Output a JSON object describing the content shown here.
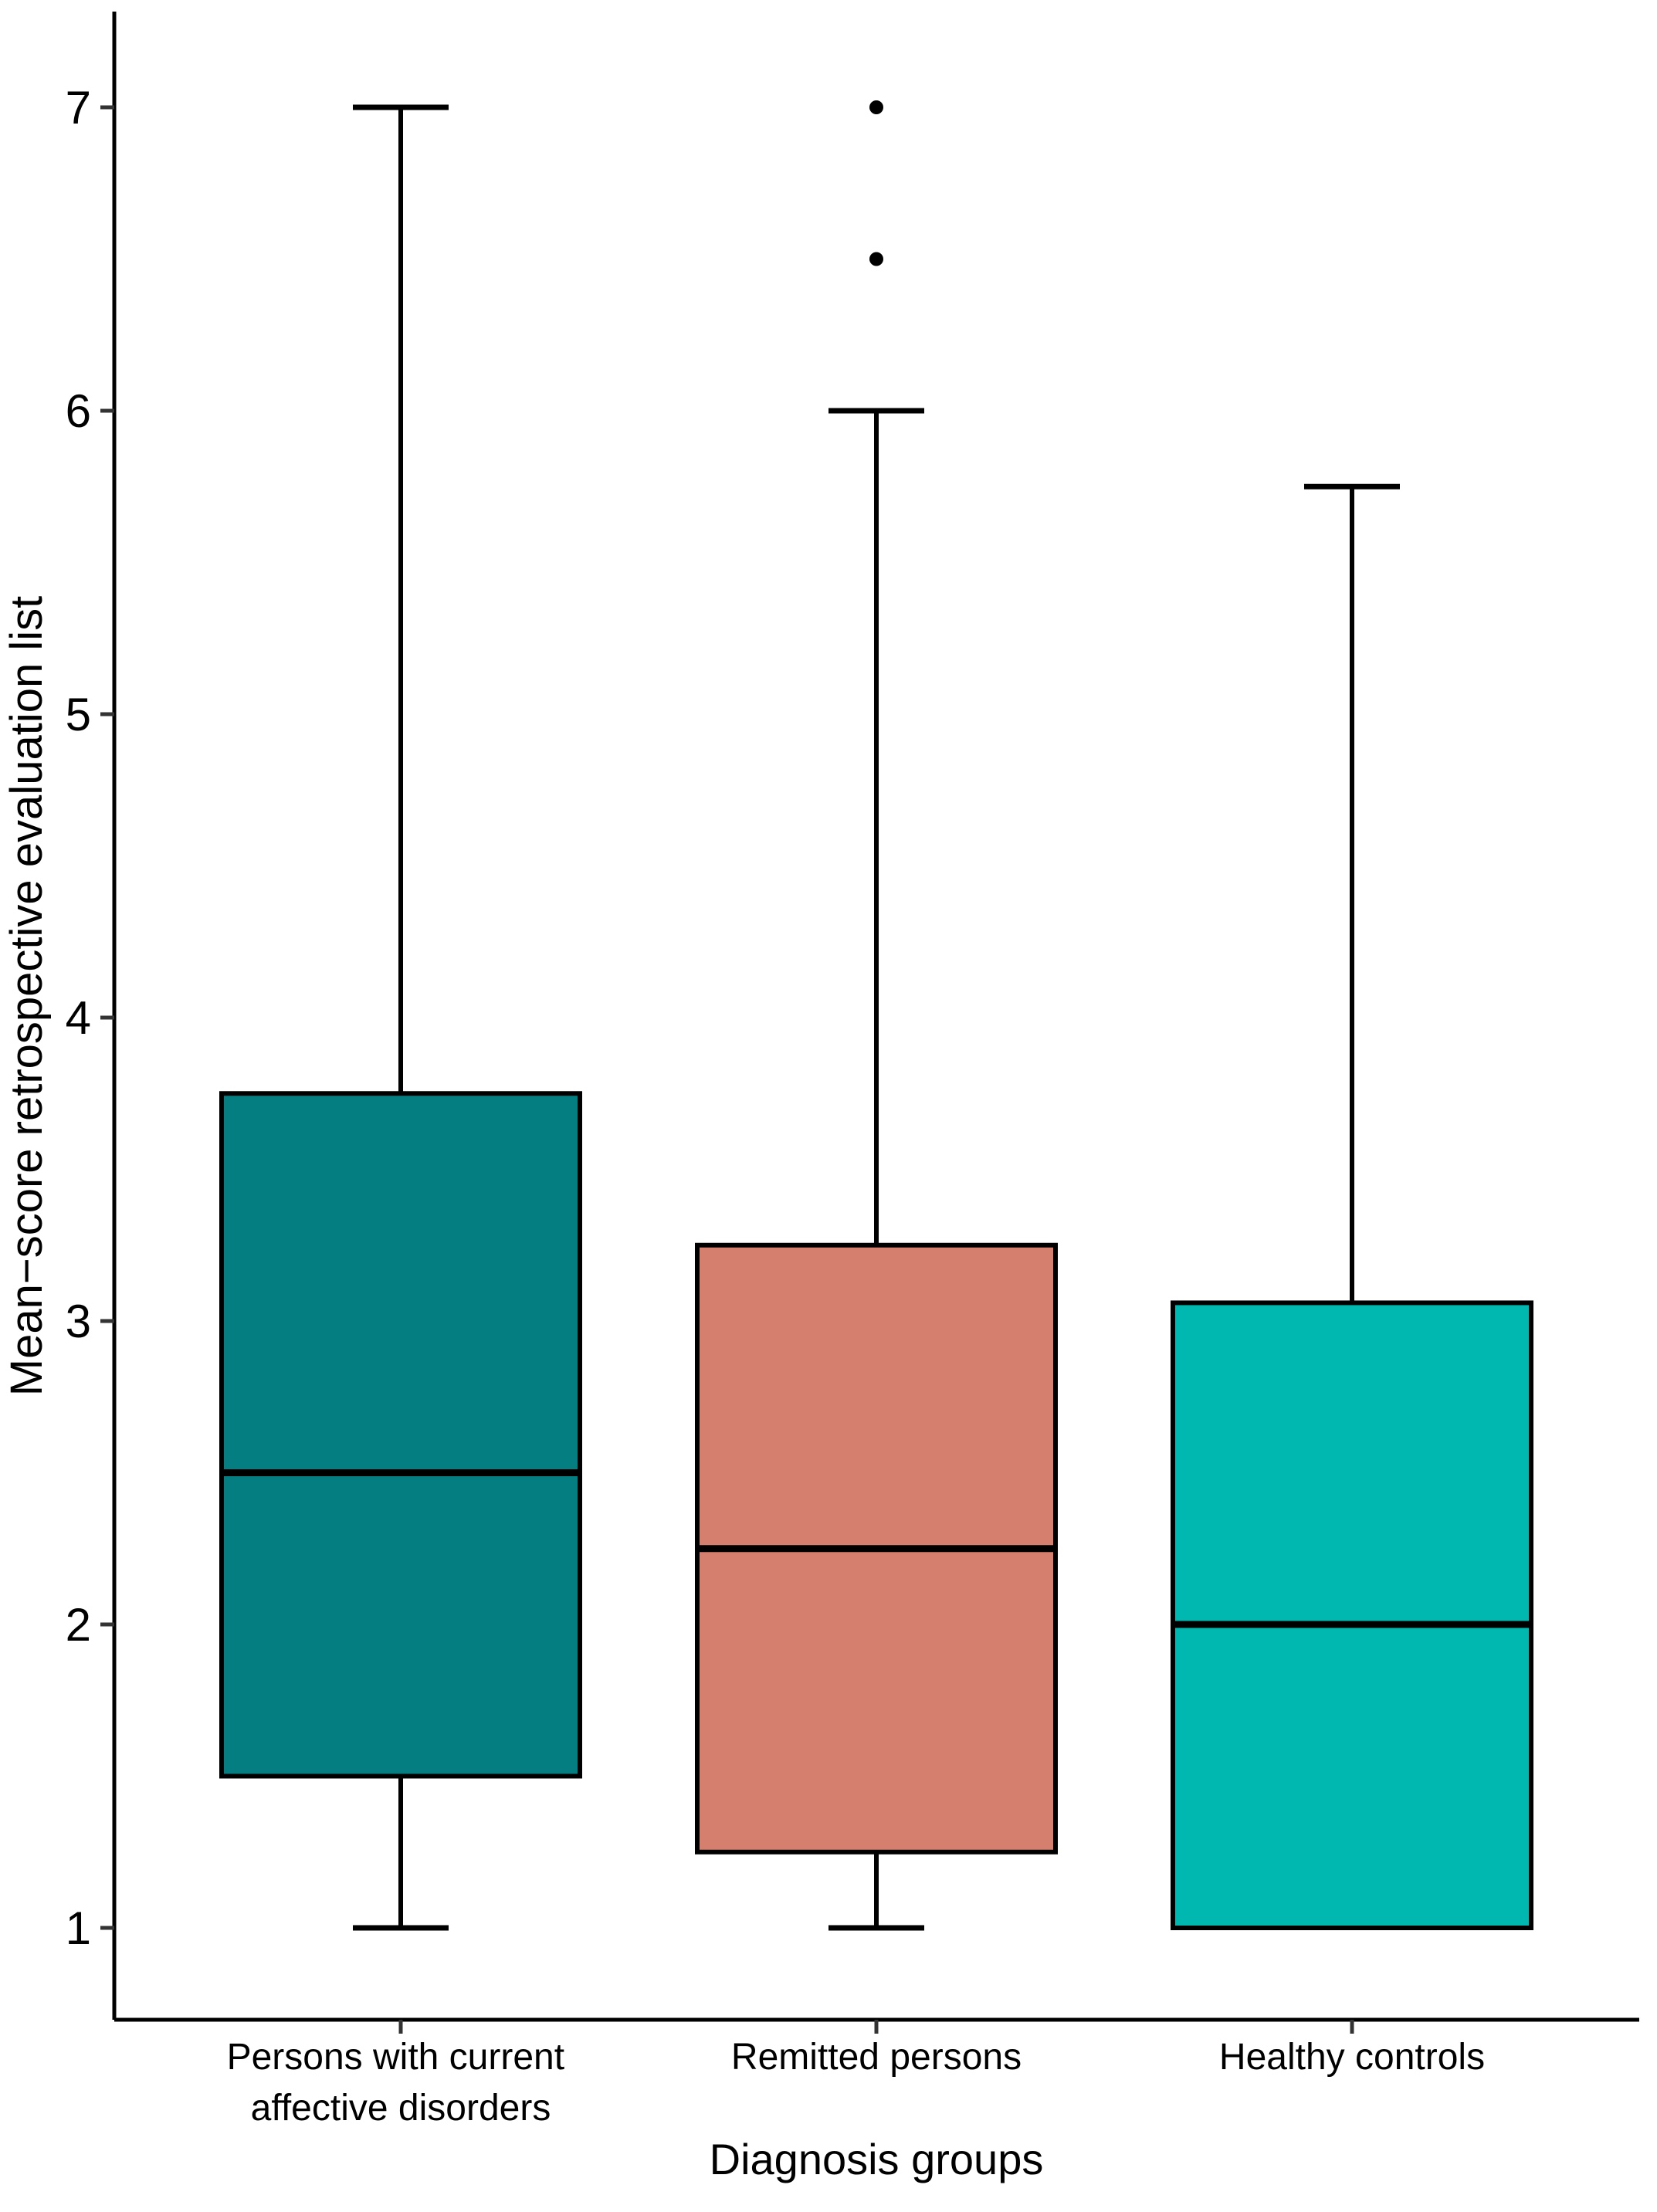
{
  "figure": {
    "background": "#ffffff"
  },
  "chart_data": {
    "type": "boxplot",
    "title": "",
    "xlabel": "Diagnosis groups",
    "ylabel": "Mean−score retrospective evaluation list",
    "ylim": [
      1,
      7
    ],
    "y_ticks": [
      1,
      2,
      3,
      4,
      5,
      6,
      7
    ],
    "grid": false,
    "legend": "none",
    "categories": [
      "Persons with current affective disorders",
      "Remitted persons",
      "Healthy controls"
    ],
    "category_label_lines": [
      [
        "Persons with current",
        "affective disorders"
      ],
      [
        "Remitted persons",
        ""
      ],
      [
        "Healthy controls",
        ""
      ]
    ],
    "series": [
      {
        "name": "Persons with current affective disorders",
        "color": "#047e80",
        "whisker_low": 1.0,
        "q1": 1.5,
        "median": 2.5,
        "q3": 3.75,
        "whisker_high": 7.0,
        "outliers": []
      },
      {
        "name": "Remitted persons",
        "color": "#d5806f",
        "whisker_low": 1.0,
        "q1": 1.25,
        "median": 2.25,
        "q3": 3.25,
        "whisker_high": 6.0,
        "outliers": [
          6.5,
          7.0
        ]
      },
      {
        "name": "Healthy controls",
        "color": "#00b8af",
        "whisker_low": 1.0,
        "q1": 1.0,
        "median": 2.0,
        "q3": 3.06,
        "whisker_high": 5.75,
        "outliers": []
      }
    ],
    "box_border_color": "#000000",
    "median_color": "#000000",
    "whisker_color": "#000000",
    "outlier_color": "#000000",
    "axis_color": "#000000"
  }
}
